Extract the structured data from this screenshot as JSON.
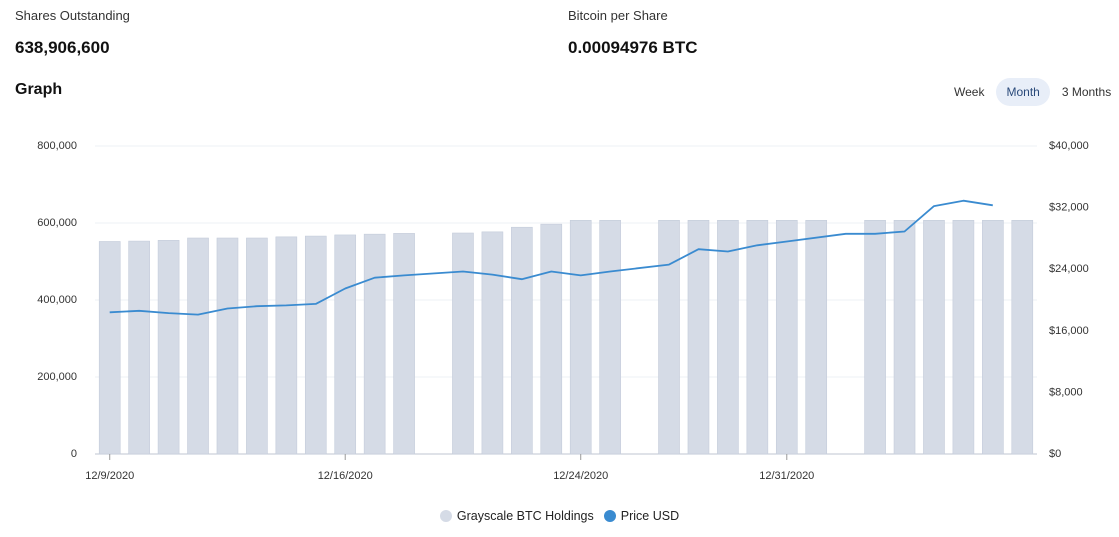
{
  "stats": {
    "shares": {
      "label": "Shares Outstanding",
      "value": "638,906,600"
    },
    "bps": {
      "label": "Bitcoin per Share",
      "value": "0.00094976 BTC"
    }
  },
  "graph": {
    "title": "Graph",
    "tabs": [
      {
        "label": "Week",
        "active": false
      },
      {
        "label": "Month",
        "active": true
      },
      {
        "label": "3 Months",
        "active": false
      }
    ]
  },
  "chart_data": {
    "type": "bar+line",
    "left_axis": {
      "ticks": [
        "0",
        "200,000",
        "400,000",
        "600,000",
        "800,000"
      ],
      "min": 0,
      "max": 800000
    },
    "right_axis": {
      "ticks": [
        "$0",
        "$8,000",
        "$16,000",
        "$24,000",
        "$32,000",
        "$40,000"
      ],
      "min": 0,
      "max": 40000
    },
    "x_tick_labels": [
      {
        "label": "12/9/2020",
        "index": 0
      },
      {
        "label": "12/16/2020",
        "index": 8
      },
      {
        "label": "12/24/2020",
        "index": 16
      },
      {
        "label": "12/31/2020",
        "index": 23
      }
    ],
    "grid": true,
    "legend_position": "bottom-center",
    "series": [
      {
        "name": "Grayscale BTC Holdings",
        "type": "bar",
        "color": "#d5dbe6",
        "values": [
          552000,
          553000,
          555000,
          561000,
          561000,
          561000,
          564000,
          566000,
          569000,
          571000,
          573000,
          null,
          574000,
          577000,
          589000,
          597000,
          607000,
          607000,
          null,
          607000,
          607000,
          607000,
          607000,
          607000,
          607000,
          null,
          607000,
          607000,
          607000,
          607000,
          607000,
          607000
        ]
      },
      {
        "name": "Price USD",
        "type": "line",
        "color": "#3a8bd0",
        "values": [
          18400,
          18600,
          18300,
          18100,
          18900,
          19200,
          19300,
          19500,
          21500,
          22900,
          23200,
          null,
          23700,
          23300,
          22700,
          23700,
          23200,
          23700,
          null,
          24600,
          26600,
          26300,
          27100,
          27600,
          null,
          28600,
          28600,
          28900,
          32200,
          32900,
          32300,
          null
        ]
      }
    ]
  }
}
